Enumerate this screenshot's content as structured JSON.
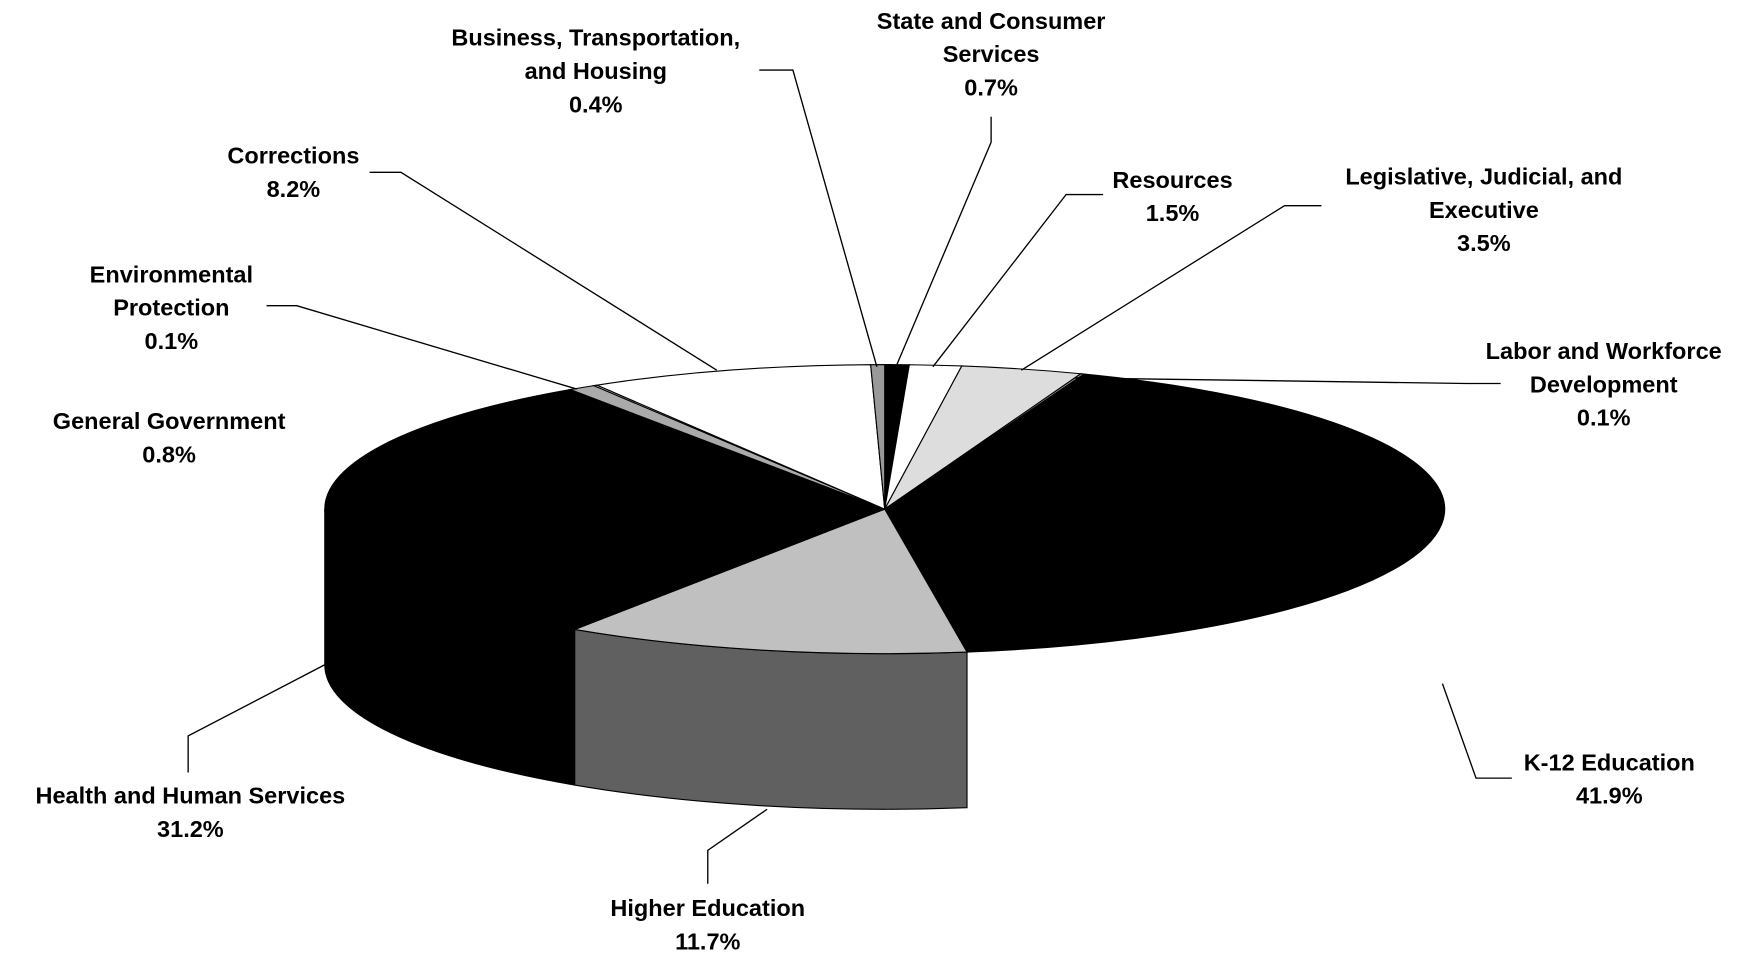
{
  "chart_data": {
    "type": "pie3d",
    "categories": [
      "State and Consumer Services",
      "Resources",
      "Legislative, Judicial, and Executive",
      "Labor and Workforce Development",
      "K-12 Education",
      "Higher Education",
      "Health and Human Services",
      "General Government",
      "Environmental Protection",
      "Corrections",
      "Business, Transportation, and Housing"
    ],
    "values": [
      0.7,
      1.5,
      3.5,
      0.1,
      41.9,
      11.7,
      31.2,
      0.8,
      0.1,
      8.2,
      0.4
    ],
    "value_labels": [
      "0.7%",
      "1.5%",
      "3.5%",
      "0.1%",
      "41.9%",
      "11.7%",
      "31.2%",
      "0.8%",
      "0.1%",
      "8.2%",
      "0.4%"
    ],
    "colors": [
      "#000000",
      "#ffffff",
      "#dddddd",
      "#999999",
      "#000000",
      "#c0c0c0",
      "#000000",
      "#aaaaaa",
      "#ffffff",
      "#ffffff",
      "#999999"
    ]
  }
}
